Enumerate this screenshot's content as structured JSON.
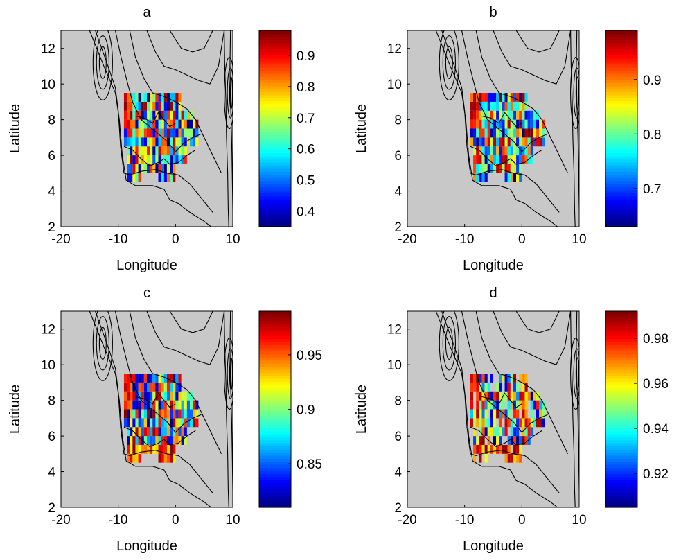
{
  "chart_data": [
    {
      "type": "heatmap",
      "title": "a",
      "xlabel": "Longitude",
      "ylabel": "Latitude",
      "xlim": [
        -20,
        10
      ],
      "ylim": [
        2,
        13
      ],
      "xticks": [
        "-20",
        "-10",
        "0",
        "10"
      ],
      "yticks": [
        "2",
        "4",
        "6",
        "8",
        "10",
        "12"
      ],
      "colorbar": {
        "range": [
          0.35,
          0.98
        ],
        "ticks": [
          "0.4",
          "0.5",
          "0.6",
          "0.7",
          "0.8",
          "0.9"
        ]
      },
      "background": "#c8c8c8",
      "grid": false,
      "region": {
        "lon": [
          -9,
          4
        ],
        "lat": [
          4.5,
          9.5
        ]
      }
    },
    {
      "type": "heatmap",
      "title": "b",
      "xlabel": "Longitude",
      "ylabel": "Latitude",
      "xlim": [
        -20,
        10
      ],
      "ylim": [
        2,
        13
      ],
      "xticks": [
        "-20",
        "-10",
        "0",
        "10"
      ],
      "yticks": [
        "2",
        "4",
        "6",
        "8",
        "10",
        "12"
      ],
      "colorbar": {
        "range": [
          0.63,
          0.99
        ],
        "ticks": [
          "0.7",
          "0.8",
          "0.9"
        ]
      },
      "background": "#c8c8c8",
      "grid": false,
      "region": {
        "lon": [
          -9,
          4
        ],
        "lat": [
          4.5,
          9.5
        ]
      }
    },
    {
      "type": "heatmap",
      "title": "c",
      "xlabel": "Longitude",
      "ylabel": "Latitude",
      "xlim": [
        -20,
        10
      ],
      "ylim": [
        2,
        13
      ],
      "xticks": [
        "-20",
        "-10",
        "0",
        "10"
      ],
      "yticks": [
        "2",
        "4",
        "6",
        "8",
        "10",
        "12"
      ],
      "colorbar": {
        "range": [
          0.81,
          0.99
        ],
        "ticks": [
          "0.85",
          "0.9",
          "0.95"
        ]
      },
      "background": "#c8c8c8",
      "grid": false,
      "region": {
        "lon": [
          -9,
          4
        ],
        "lat": [
          4.5,
          9.5
        ]
      }
    },
    {
      "type": "heatmap",
      "title": "d",
      "xlabel": "Longitude",
      "ylabel": "Latitude",
      "xlim": [
        -20,
        10
      ],
      "ylim": [
        2,
        13
      ],
      "xticks": [
        "-20",
        "-10",
        "0",
        "10"
      ],
      "yticks": [
        "2",
        "4",
        "6",
        "8",
        "10",
        "12"
      ],
      "colorbar": {
        "range": [
          0.905,
          0.992
        ],
        "ticks": [
          "0.92",
          "0.94",
          "0.96",
          "0.98"
        ]
      },
      "background": "#c8c8c8",
      "grid": false,
      "region": {
        "lon": [
          -9,
          4
        ],
        "lat": [
          4.5,
          9.5
        ]
      }
    }
  ]
}
